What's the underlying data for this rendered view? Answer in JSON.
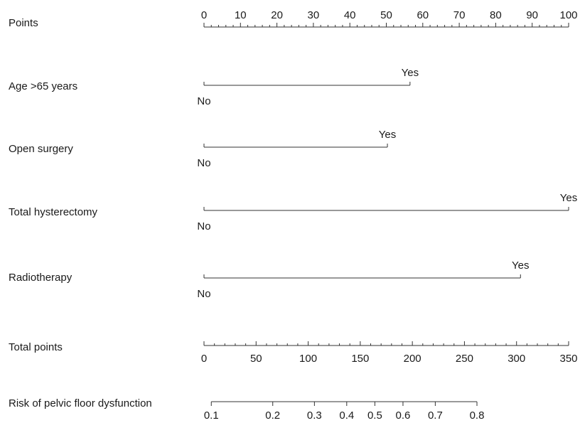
{
  "chart_data": {
    "type": "nomogram",
    "points_scale": {
      "label": "Points",
      "min": 0,
      "max": 100,
      "major_ticks": [
        0,
        10,
        20,
        30,
        40,
        50,
        60,
        70,
        80,
        90,
        100
      ],
      "minor_step": 2
    },
    "predictors": [
      {
        "name": "Age >65 years",
        "levels": [
          {
            "label": "No",
            "points": 0
          },
          {
            "label": "Yes",
            "points": 56.5
          }
        ]
      },
      {
        "name": "Open surgery",
        "levels": [
          {
            "label": "No",
            "points": 0
          },
          {
            "label": "Yes",
            "points": 50.3
          }
        ]
      },
      {
        "name": "Total hysterectomy",
        "levels": [
          {
            "label": "No",
            "points": 0
          },
          {
            "label": "Yes",
            "points": 100
          }
        ]
      },
      {
        "name": "Radiotherapy",
        "levels": [
          {
            "label": "No",
            "points": 0
          },
          {
            "label": "Yes",
            "points": 86.8
          }
        ]
      }
    ],
    "total_points_scale": {
      "label": "Total points",
      "min": 0,
      "max": 350,
      "major_ticks": [
        0,
        50,
        100,
        150,
        200,
        250,
        300,
        350
      ],
      "minor_step": 10
    },
    "risk_scale": {
      "label": "Risk of pelvic floor dysfunction",
      "ticks": [
        {
          "label": "0.1",
          "total_points": 7
        },
        {
          "label": "0.2",
          "total_points": 66
        },
        {
          "label": "0.3",
          "total_points": 106
        },
        {
          "label": "0.4",
          "total_points": 137
        },
        {
          "label": "0.5",
          "total_points": 164
        },
        {
          "label": "0.6",
          "total_points": 191
        },
        {
          "label": "0.7",
          "total_points": 222
        },
        {
          "label": "0.8",
          "total_points": 262
        }
      ]
    }
  }
}
